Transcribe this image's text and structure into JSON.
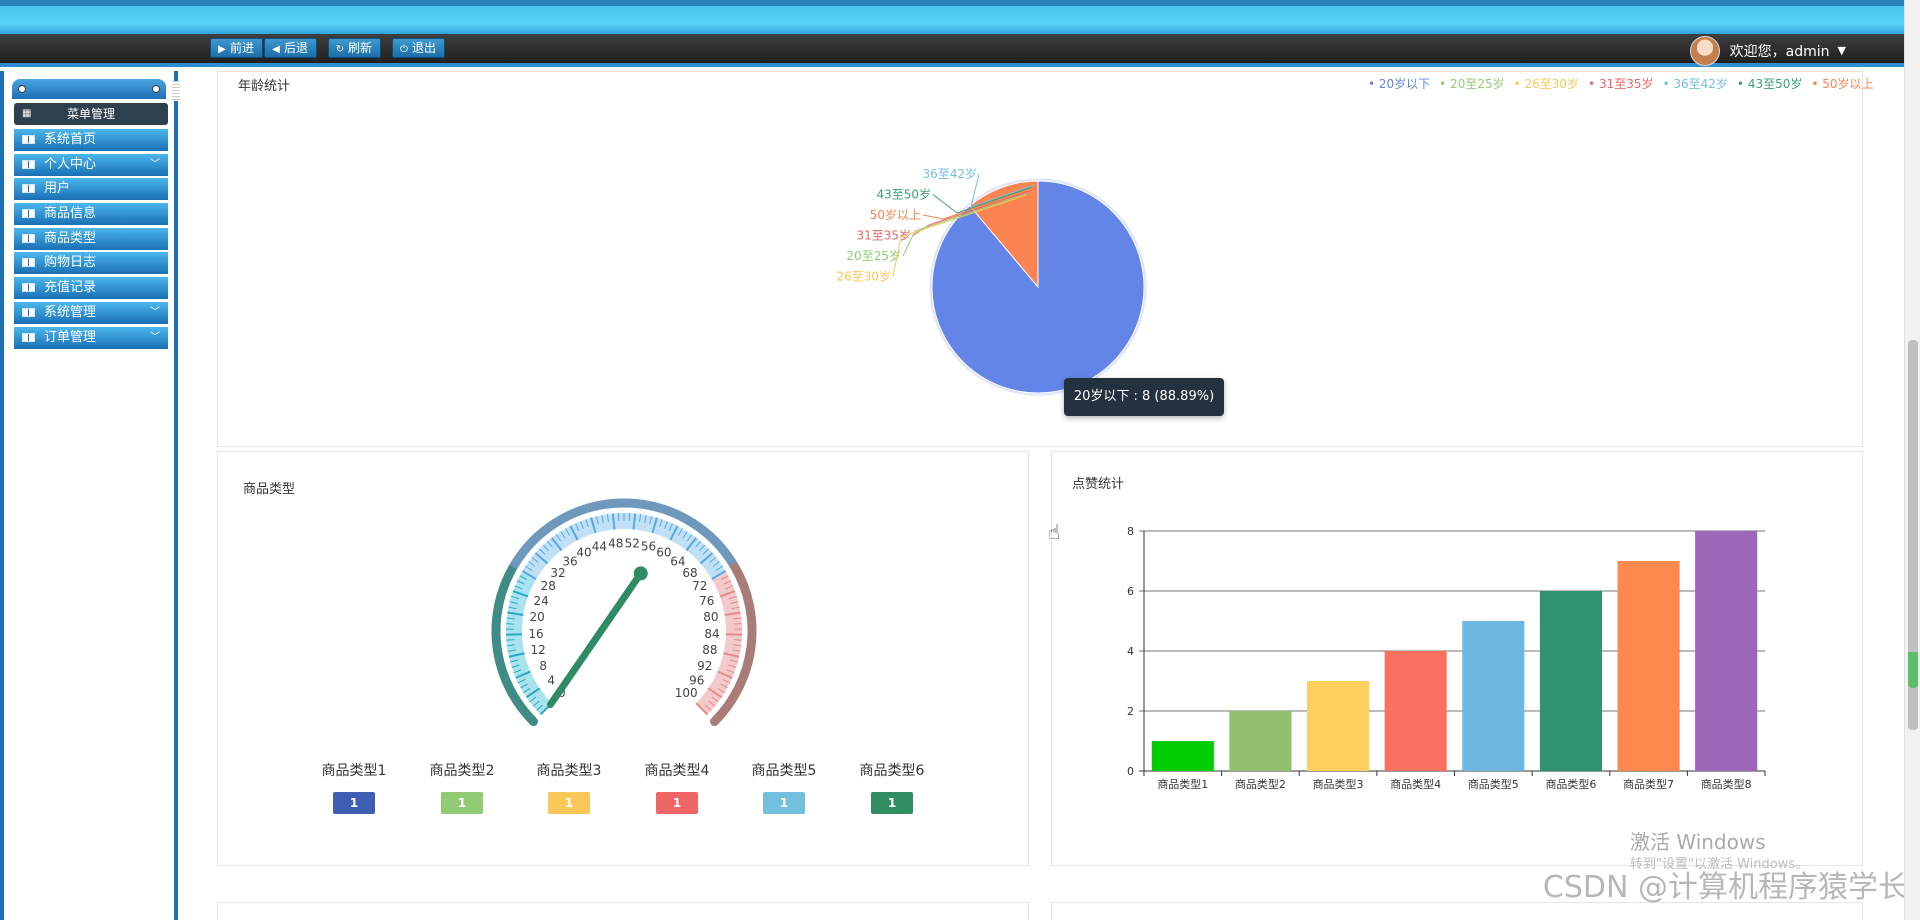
{
  "toolbar": {
    "buttons": [
      {
        "icon": "play-right-icon",
        "label": "前进"
      },
      {
        "icon": "play-left-icon",
        "label": "后退"
      },
      {
        "icon": "refresh-icon",
        "label": "刷新"
      },
      {
        "icon": "power-icon",
        "label": "退出"
      }
    ],
    "user_greeting": "欢迎您，admin"
  },
  "sidebar": {
    "header": "菜单管理",
    "items": [
      {
        "label": "系统首页",
        "expandable": false
      },
      {
        "label": "个人中心",
        "expandable": true
      },
      {
        "label": "用户",
        "expandable": false
      },
      {
        "label": "商品信息",
        "expandable": false
      },
      {
        "label": "商品类型",
        "expandable": false
      },
      {
        "label": "购物日志",
        "expandable": false
      },
      {
        "label": "充值记录",
        "expandable": false
      },
      {
        "label": "系统管理",
        "expandable": true
      },
      {
        "label": "订单管理",
        "expandable": true
      }
    ]
  },
  "age_panel": {
    "title": "年龄统计",
    "tooltip": "20岁以下 : 8 (88.89%)"
  },
  "type_panel": {
    "title": "商品类型"
  },
  "likes_panel": {
    "title": "点赞统计"
  },
  "watermark": {
    "line1": "激活 Windows",
    "line2": "转到\"设置\"以激活 Windows。",
    "csdn": "CSDN @计算机程序猿学长"
  },
  "chart_data": [
    {
      "type": "pie",
      "title": "年龄统计",
      "categories": [
        "20岁以下",
        "20至25岁",
        "26至30岁",
        "31至35岁",
        "36至42岁",
        "43至50岁",
        "50岁以上"
      ],
      "values": [
        8,
        0,
        0,
        0,
        0,
        0,
        1
      ],
      "colors": [
        "#6485e8",
        "#91cc75",
        "#fac858",
        "#ee6666",
        "#73c0de",
        "#3ba272",
        "#fc8452"
      ],
      "legend_position": "top-right",
      "slice_label_order": [
        "36至42岁",
        "43至50岁",
        "50岁以上",
        "31至35岁",
        "20至25岁",
        "26至30岁"
      ]
    },
    {
      "type": "gauge",
      "title": "商品类型",
      "min": 0,
      "max": 100,
      "tick_labels": [
        "0",
        "4",
        "8",
        "12",
        "16",
        "20",
        "24",
        "28",
        "32",
        "36",
        "40",
        "44",
        "48",
        "52",
        "56",
        "60",
        "64",
        "68",
        "72",
        "76",
        "80",
        "84",
        "88",
        "92",
        "96",
        "100"
      ],
      "pointer_value": 56,
      "categories": [
        "商品类型1",
        "商品类型2",
        "商品类型3",
        "商品类型4",
        "商品类型5",
        "商品类型6"
      ],
      "values": [
        1,
        1,
        1,
        1,
        1,
        1
      ],
      "colors": [
        "#3f5fb3",
        "#91cc75",
        "#fac858",
        "#ee6666",
        "#73c0de",
        "#2f8f63"
      ]
    },
    {
      "type": "bar",
      "title": "点赞统计",
      "categories": [
        "商品类型1",
        "商品类型2",
        "商品类型3",
        "商品类型4",
        "商品类型5",
        "商品类型6",
        "商品类型7",
        "商品类型8"
      ],
      "values": [
        1,
        2,
        3,
        4,
        5,
        6,
        7,
        8
      ],
      "colors": [
        "#00cc00",
        "#91c16f",
        "#fdd05e",
        "#fb7160",
        "#6db8e1",
        "#2e9470",
        "#fc8a4e",
        "#9c67b6"
      ],
      "ylim": [
        0,
        8
      ],
      "yticks": [
        0,
        2,
        4,
        6,
        8
      ]
    }
  ]
}
